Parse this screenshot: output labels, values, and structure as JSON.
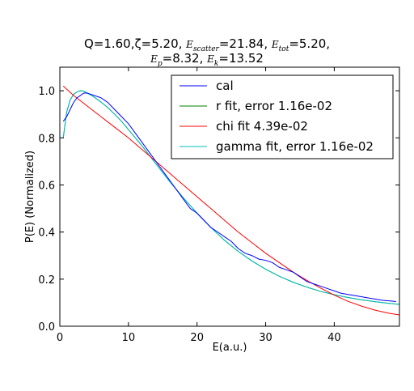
{
  "title": {
    "q": "Q=1.60,",
    "zeta": "ζ=5.20,",
    "e_scatter_label": "E",
    "e_scatter_sub": "scatter",
    "e_scatter_val": "=21.84,",
    "e_tot_label": "E",
    "e_tot_sub": "tot",
    "e_tot_val": "=5.20,",
    "e_p_label": "E",
    "e_p_sub": "p",
    "e_p_val": "=8.32,",
    "e_k_label": "E",
    "e_k_sub": "k",
    "e_k_val": "=13.52"
  },
  "chart_data": {
    "type": "line",
    "xlabel": "E(a.u.)",
    "ylabel": "P(E) (Normalized)",
    "xlim": [
      0,
      49.5
    ],
    "ylim": [
      0,
      1.1
    ],
    "xticks": [
      0,
      10,
      20,
      30,
      40
    ],
    "yticks": [
      0.0,
      0.2,
      0.4,
      0.6,
      0.8,
      1.0
    ],
    "xtick_labels": [
      "0",
      "10",
      "20",
      "30",
      "40"
    ],
    "ytick_labels": [
      "0.0",
      "0.2",
      "0.4",
      "0.6",
      "0.8",
      "1.0"
    ],
    "grid": false,
    "legend_position": "upper-right",
    "series": [
      {
        "name": "cal",
        "color": "#0000ff",
        "x": [
          0.5,
          1.0,
          1.5,
          2.0,
          2.5,
          3.0,
          3.5,
          4.0,
          4.5,
          5.0,
          5.5,
          6.0,
          7.0,
          8.0,
          9.0,
          10.0,
          11.0,
          12.0,
          13.0,
          14.0,
          15.0,
          16.0,
          17.0,
          18.0,
          19.0,
          20.0,
          21.0,
          22.0,
          23.0,
          24.0,
          25.0,
          26.0,
          27.0,
          28.0,
          29.0,
          30.0,
          31.0,
          32.0,
          33.0,
          34.0,
          35.0,
          36.0,
          37.0,
          38.0,
          39.0,
          40.0,
          41.0,
          42.0,
          43.0,
          44.0,
          45.0,
          46.0,
          47.0,
          48.0,
          49.0
        ],
        "y": [
          0.87,
          0.89,
          0.92,
          0.95,
          0.97,
          0.98,
          0.99,
          0.99,
          0.985,
          0.98,
          0.975,
          0.97,
          0.95,
          0.92,
          0.89,
          0.86,
          0.82,
          0.78,
          0.74,
          0.7,
          0.66,
          0.62,
          0.58,
          0.54,
          0.5,
          0.48,
          0.45,
          0.42,
          0.4,
          0.38,
          0.36,
          0.33,
          0.31,
          0.3,
          0.285,
          0.28,
          0.27,
          0.25,
          0.24,
          0.23,
          0.21,
          0.19,
          0.18,
          0.17,
          0.16,
          0.15,
          0.14,
          0.135,
          0.13,
          0.125,
          0.12,
          0.115,
          0.11,
          0.108,
          0.105
        ]
      },
      {
        "name": "r fit, error 1.16e-02",
        "color": "#008000",
        "x": [
          0.5,
          1.0,
          1.5,
          2.0,
          2.5,
          3.0,
          3.5,
          4.0,
          4.5,
          5.0,
          6.0,
          7.0,
          8.0,
          9.0,
          10.0,
          12.0,
          14.0,
          16.0,
          18.0,
          20.0,
          22.0,
          24.0,
          26.0,
          28.0,
          30.0,
          32.0,
          34.0,
          36.0,
          38.0,
          40.0,
          42.0,
          44.0,
          46.0,
          48.0,
          49.5
        ],
        "y": [
          0.8,
          0.91,
          0.96,
          0.985,
          0.995,
          1.0,
          0.998,
          0.99,
          0.982,
          0.973,
          0.952,
          0.928,
          0.9,
          0.87,
          0.835,
          0.765,
          0.69,
          0.615,
          0.545,
          0.48,
          0.42,
          0.365,
          0.318,
          0.277,
          0.242,
          0.212,
          0.187,
          0.166,
          0.148,
          0.134,
          0.122,
          0.112,
          0.104,
          0.097,
          0.093
        ]
      },
      {
        "name": "chi fit 4.39e-02",
        "color": "#ff0000",
        "x": [
          0.5,
          2.0,
          4.0,
          6.0,
          8.0,
          10.0,
          12.0,
          14.0,
          16.0,
          18.0,
          20.0,
          22.0,
          24.0,
          26.0,
          28.0,
          30.0,
          32.0,
          34.0,
          36.0,
          38.0,
          40.0,
          42.0,
          44.0,
          46.0,
          48.0,
          49.5
        ],
        "y": [
          1.02,
          0.98,
          0.935,
          0.89,
          0.845,
          0.8,
          0.75,
          0.7,
          0.65,
          0.6,
          0.55,
          0.5,
          0.45,
          0.4,
          0.355,
          0.31,
          0.27,
          0.23,
          0.195,
          0.162,
          0.132,
          0.106,
          0.085,
          0.068,
          0.055,
          0.048
        ]
      },
      {
        "name": "gamma fit, error 1.16e-02",
        "color": "#00bfbf",
        "x": [
          0.5,
          1.0,
          1.5,
          2.0,
          2.5,
          3.0,
          3.5,
          4.0,
          4.5,
          5.0,
          6.0,
          7.0,
          8.0,
          9.0,
          10.0,
          12.0,
          14.0,
          16.0,
          18.0,
          20.0,
          22.0,
          24.0,
          26.0,
          28.0,
          30.0,
          32.0,
          34.0,
          36.0,
          38.0,
          40.0,
          42.0,
          44.0,
          46.0,
          48.0,
          49.5
        ],
        "y": [
          0.8,
          0.91,
          0.96,
          0.985,
          0.995,
          1.0,
          0.998,
          0.99,
          0.982,
          0.973,
          0.952,
          0.928,
          0.9,
          0.87,
          0.835,
          0.765,
          0.69,
          0.615,
          0.545,
          0.48,
          0.42,
          0.365,
          0.318,
          0.277,
          0.242,
          0.212,
          0.187,
          0.166,
          0.148,
          0.134,
          0.122,
          0.112,
          0.104,
          0.097,
          0.093
        ]
      }
    ]
  }
}
